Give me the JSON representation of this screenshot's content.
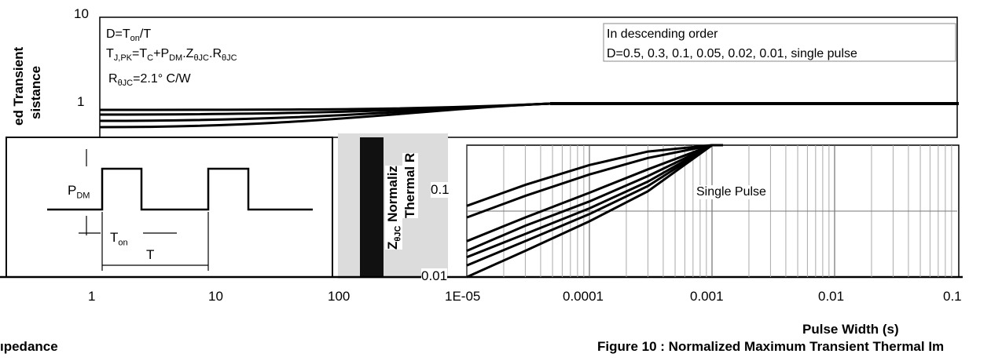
{
  "left_chart": {
    "y_tick_top": "10",
    "y_tick_mid": "1",
    "ylabel_line1": "ed Transient",
    "ylabel_line2": "sistance",
    "x_ticks": [
      "1",
      "10",
      "100"
    ],
    "notes": [
      "D=T",
      "T",
      "R",
      "=2.1° C/W"
    ],
    "pulse_labels": {
      "pdm": "P",
      "pdm_sub": "DM",
      "ton": "T",
      "ton_sub": "on",
      "period": "T"
    },
    "caption_fragment": "ıpedance"
  },
  "right_chart": {
    "y_tick_mid": "0.1",
    "y_tick_bottom": "0.01",
    "ylabel_frag": "Z",
    "ylabel_line": "Normaliz",
    "ylabel_line2": "Thermal R",
    "x_ticks": [
      "1E-05",
      "0.0001",
      "0.001",
      "0.01",
      "0.1"
    ],
    "xlabel": "Pulse Width (s)",
    "legend_title": "In descending order",
    "legend_items": "D=0.5, 0.3, 0.1, 0.05, 0.02, 0.01, single pulse",
    "single_pulse_label": "Single Pulse",
    "caption": "Figure 10 : Normalized Maximum Transient Thermal Im"
  },
  "chart_data": [
    {
      "type": "line",
      "title": "",
      "xlabel": "",
      "ylabel": "ed Transient sistance",
      "xscale": "log",
      "yscale": "log",
      "x_ticks": [
        "1",
        "10",
        "100"
      ],
      "y_ticks": [
        "10",
        "1"
      ],
      "series": [
        {
          "x": [
            0.3,
            1,
            3,
            10,
            30,
            100
          ],
          "y": [
            0.98,
            1.0,
            1.0,
            1.0,
            1.0,
            1.0
          ]
        }
      ]
    },
    {
      "type": "line",
      "title": "",
      "xlabel": "Pulse Width (s)",
      "ylabel": "Normaliz Thermal R",
      "xscale": "log",
      "yscale": "log",
      "xlim": [
        1e-05,
        0.1
      ],
      "x_ticks": [
        "1E-05",
        "0.0001",
        "0.001",
        "0.01",
        "0.1"
      ],
      "y_ticks": [
        "0.1",
        "0.01"
      ],
      "series": [
        {
          "name": "D=0.5",
          "x": [
            1e-05,
            3e-05,
            0.0001,
            0.0003,
            0.001,
            0.01,
            0.1
          ],
          "y": [
            0.12,
            0.25,
            0.5,
            0.8,
            1.0,
            1.0,
            1.0
          ]
        },
        {
          "name": "D=0.3",
          "x": [
            1e-05,
            3e-05,
            0.0001,
            0.0003,
            0.001,
            0.01,
            0.1
          ],
          "y": [
            0.08,
            0.17,
            0.36,
            0.64,
            1.0,
            1.0,
            1.0
          ]
        },
        {
          "name": "D=0.1",
          "x": [
            1e-05,
            3e-05,
            0.0001,
            0.0003,
            0.001,
            0.01,
            0.1
          ],
          "y": [
            0.035,
            0.08,
            0.19,
            0.43,
            1.0,
            1.0,
            1.0
          ]
        },
        {
          "name": "D=0.05",
          "x": [
            1e-05,
            3e-05,
            0.0001,
            0.0003,
            0.001,
            0.01,
            0.1
          ],
          "y": [
            0.025,
            0.06,
            0.14,
            0.34,
            1.0,
            1.0,
            1.0
          ]
        },
        {
          "name": "D=0.02",
          "x": [
            1e-05,
            3e-05,
            0.0001,
            0.0003,
            0.001,
            0.01,
            0.1
          ],
          "y": [
            0.02,
            0.045,
            0.11,
            0.28,
            1.0,
            1.0,
            1.0
          ]
        },
        {
          "name": "D=0.01",
          "x": [
            1e-05,
            3e-05,
            0.0001,
            0.0003,
            0.001,
            0.01,
            0.1
          ],
          "y": [
            0.015,
            0.035,
            0.09,
            0.24,
            1.0,
            1.0,
            1.0
          ]
        },
        {
          "name": "single pulse",
          "x": [
            1e-05,
            3e-05,
            0.0001,
            0.0003,
            0.001,
            0.01,
            0.1
          ],
          "y": [
            0.01,
            0.025,
            0.07,
            0.2,
            1.0,
            1.0,
            1.0
          ]
        }
      ]
    }
  ]
}
